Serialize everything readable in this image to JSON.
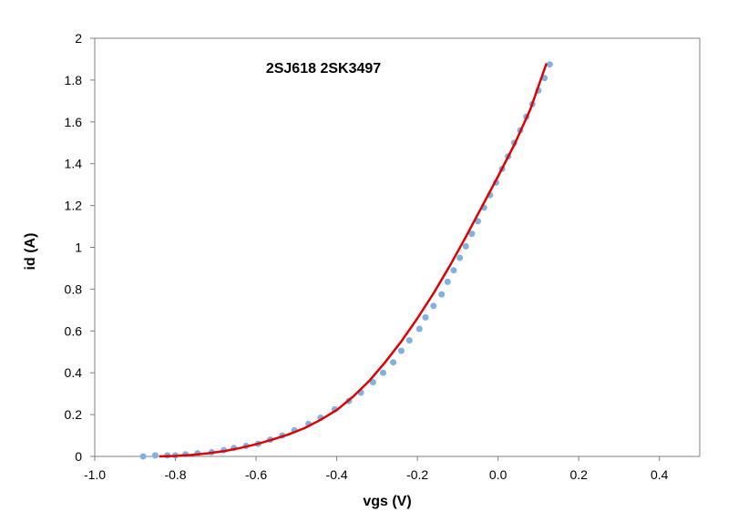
{
  "chart_data": {
    "type": "scatter",
    "title": "2SJ618 2SK3497",
    "xlabel": "vgs    (V)",
    "ylabel": "id    (A)",
    "xlim": [
      -1.0,
      0.5
    ],
    "ylim": [
      0,
      2
    ],
    "xticks": [
      -1.0,
      -0.8,
      -0.6,
      -0.4,
      -0.2,
      0.0,
      0.2,
      0.4
    ],
    "xtick_labels": [
      "-1.0",
      "-0.8",
      "-0.6",
      "-0.4",
      "-0.2",
      "0.0",
      "0.2",
      "0.4"
    ],
    "yticks": [
      0,
      0.2,
      0.4,
      0.6,
      0.8,
      1,
      1.2,
      1.4,
      1.6,
      1.8,
      2
    ],
    "ytick_labels": [
      "0",
      "0.2",
      "0.4",
      "0.6",
      "0.8",
      "1",
      "1.2",
      "1.4",
      "1.6",
      "1.8",
      "2"
    ],
    "grid": false,
    "legend": "none",
    "series": [
      {
        "style": "markers",
        "color": "#7fb2e0",
        "points": [
          [
            -0.88,
            0.0
          ],
          [
            -0.85,
            0.005
          ],
          [
            -0.82,
            0.005
          ],
          [
            -0.8,
            0.005
          ],
          [
            -0.775,
            0.01
          ],
          [
            -0.745,
            0.015
          ],
          [
            -0.71,
            0.02
          ],
          [
            -0.68,
            0.03
          ],
          [
            -0.655,
            0.04
          ],
          [
            -0.625,
            0.05
          ],
          [
            -0.595,
            0.06
          ],
          [
            -0.565,
            0.08
          ],
          [
            -0.535,
            0.1
          ],
          [
            -0.505,
            0.125
          ],
          [
            -0.47,
            0.155
          ],
          [
            -0.44,
            0.185
          ],
          [
            -0.405,
            0.225
          ],
          [
            -0.37,
            0.265
          ],
          [
            -0.34,
            0.305
          ],
          [
            -0.31,
            0.355
          ],
          [
            -0.285,
            0.4
          ],
          [
            -0.26,
            0.45
          ],
          [
            -0.24,
            0.505
          ],
          [
            -0.22,
            0.555
          ],
          [
            -0.195,
            0.61
          ],
          [
            -0.18,
            0.665
          ],
          [
            -0.16,
            0.72
          ],
          [
            -0.14,
            0.775
          ],
          [
            -0.125,
            0.835
          ],
          [
            -0.11,
            0.89
          ],
          [
            -0.095,
            0.95
          ],
          [
            -0.08,
            1.005
          ],
          [
            -0.065,
            1.065
          ],
          [
            -0.05,
            1.125
          ],
          [
            -0.035,
            1.19
          ],
          [
            -0.02,
            1.25
          ],
          [
            -0.005,
            1.31
          ],
          [
            0.01,
            1.375
          ],
          [
            0.025,
            1.435
          ],
          [
            0.04,
            1.5
          ],
          [
            0.055,
            1.56
          ],
          [
            0.07,
            1.625
          ],
          [
            0.085,
            1.685
          ],
          [
            0.1,
            1.75
          ],
          [
            0.115,
            1.81
          ],
          [
            0.128,
            1.875
          ]
        ]
      },
      {
        "style": "line",
        "color": "#e00000",
        "points": [
          [
            -0.84,
            0.0
          ],
          [
            -0.8,
            0.002
          ],
          [
            -0.76,
            0.007
          ],
          [
            -0.72,
            0.015
          ],
          [
            -0.68,
            0.025
          ],
          [
            -0.64,
            0.04
          ],
          [
            -0.6,
            0.058
          ],
          [
            -0.56,
            0.08
          ],
          [
            -0.52,
            0.105
          ],
          [
            -0.48,
            0.135
          ],
          [
            -0.44,
            0.175
          ],
          [
            -0.4,
            0.222
          ],
          [
            -0.36,
            0.285
          ],
          [
            -0.32,
            0.36
          ],
          [
            -0.28,
            0.45
          ],
          [
            -0.24,
            0.55
          ],
          [
            -0.2,
            0.66
          ],
          [
            -0.16,
            0.78
          ],
          [
            -0.12,
            0.91
          ],
          [
            -0.08,
            1.05
          ],
          [
            -0.04,
            1.195
          ],
          [
            0.0,
            1.34
          ],
          [
            0.04,
            1.49
          ],
          [
            0.08,
            1.66
          ],
          [
            0.12,
            1.88
          ]
        ]
      }
    ]
  }
}
